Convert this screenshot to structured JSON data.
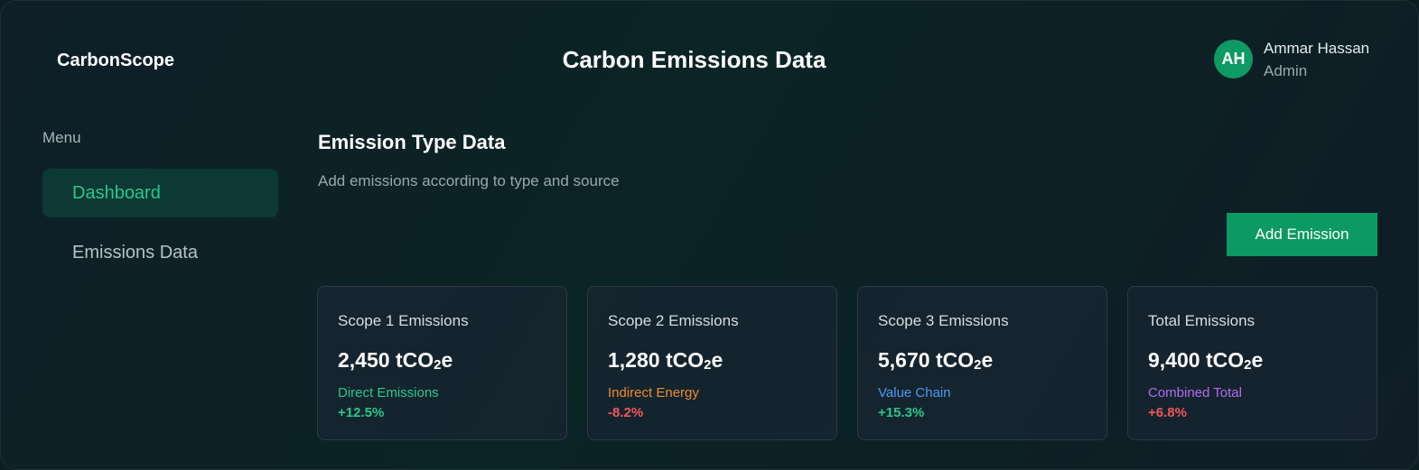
{
  "header": {
    "brand": "CarbonScope",
    "title": "Carbon Emissions Data",
    "user": {
      "initials": "AH",
      "name": "Ammar Hassan",
      "role": "Admin"
    }
  },
  "sidebar": {
    "menu_label": "Menu",
    "items": [
      {
        "label": "Dashboard",
        "active": true
      },
      {
        "label": "Emissions Data",
        "active": false
      }
    ]
  },
  "main": {
    "section_title": "Emission Type Data",
    "section_subtitle": "Add emissions according to type and source",
    "add_button_label": "Add Emission",
    "cards": [
      {
        "title": "Scope 1 Emissions",
        "value": "2,450",
        "unit_prefix": "tCO",
        "unit_sub": "2",
        "unit_suffix": "e",
        "label": "Direct Emissions",
        "label_color": "#27c98a",
        "change": "+12.5%",
        "change_color": "#27c98a"
      },
      {
        "title": "Scope 2 Emissions",
        "value": "1,280",
        "unit_prefix": "tCO",
        "unit_sub": "2",
        "unit_suffix": "e",
        "label": "Indirect Energy",
        "label_color": "#f08a2c",
        "change": "-8.2%",
        "change_color": "#f0575d"
      },
      {
        "title": "Scope 3 Emissions",
        "value": "5,670",
        "unit_prefix": "tCO",
        "unit_sub": "2",
        "unit_suffix": "e",
        "label": "Value Chain",
        "label_color": "#4d9bf2",
        "change": "+15.3%",
        "change_color": "#27c98a"
      },
      {
        "title": "Total Emissions",
        "value": "9,400",
        "unit_prefix": "tCO",
        "unit_sub": "2",
        "unit_suffix": "e",
        "label": "Combined Total",
        "label_color": "#b36bf2",
        "change": "+6.8%",
        "change_color": "#f0575d"
      }
    ]
  },
  "colors": {
    "accent": "#0d9a62",
    "active_nav_bg": "#0d3833",
    "active_nav_text": "#27c98a"
  }
}
